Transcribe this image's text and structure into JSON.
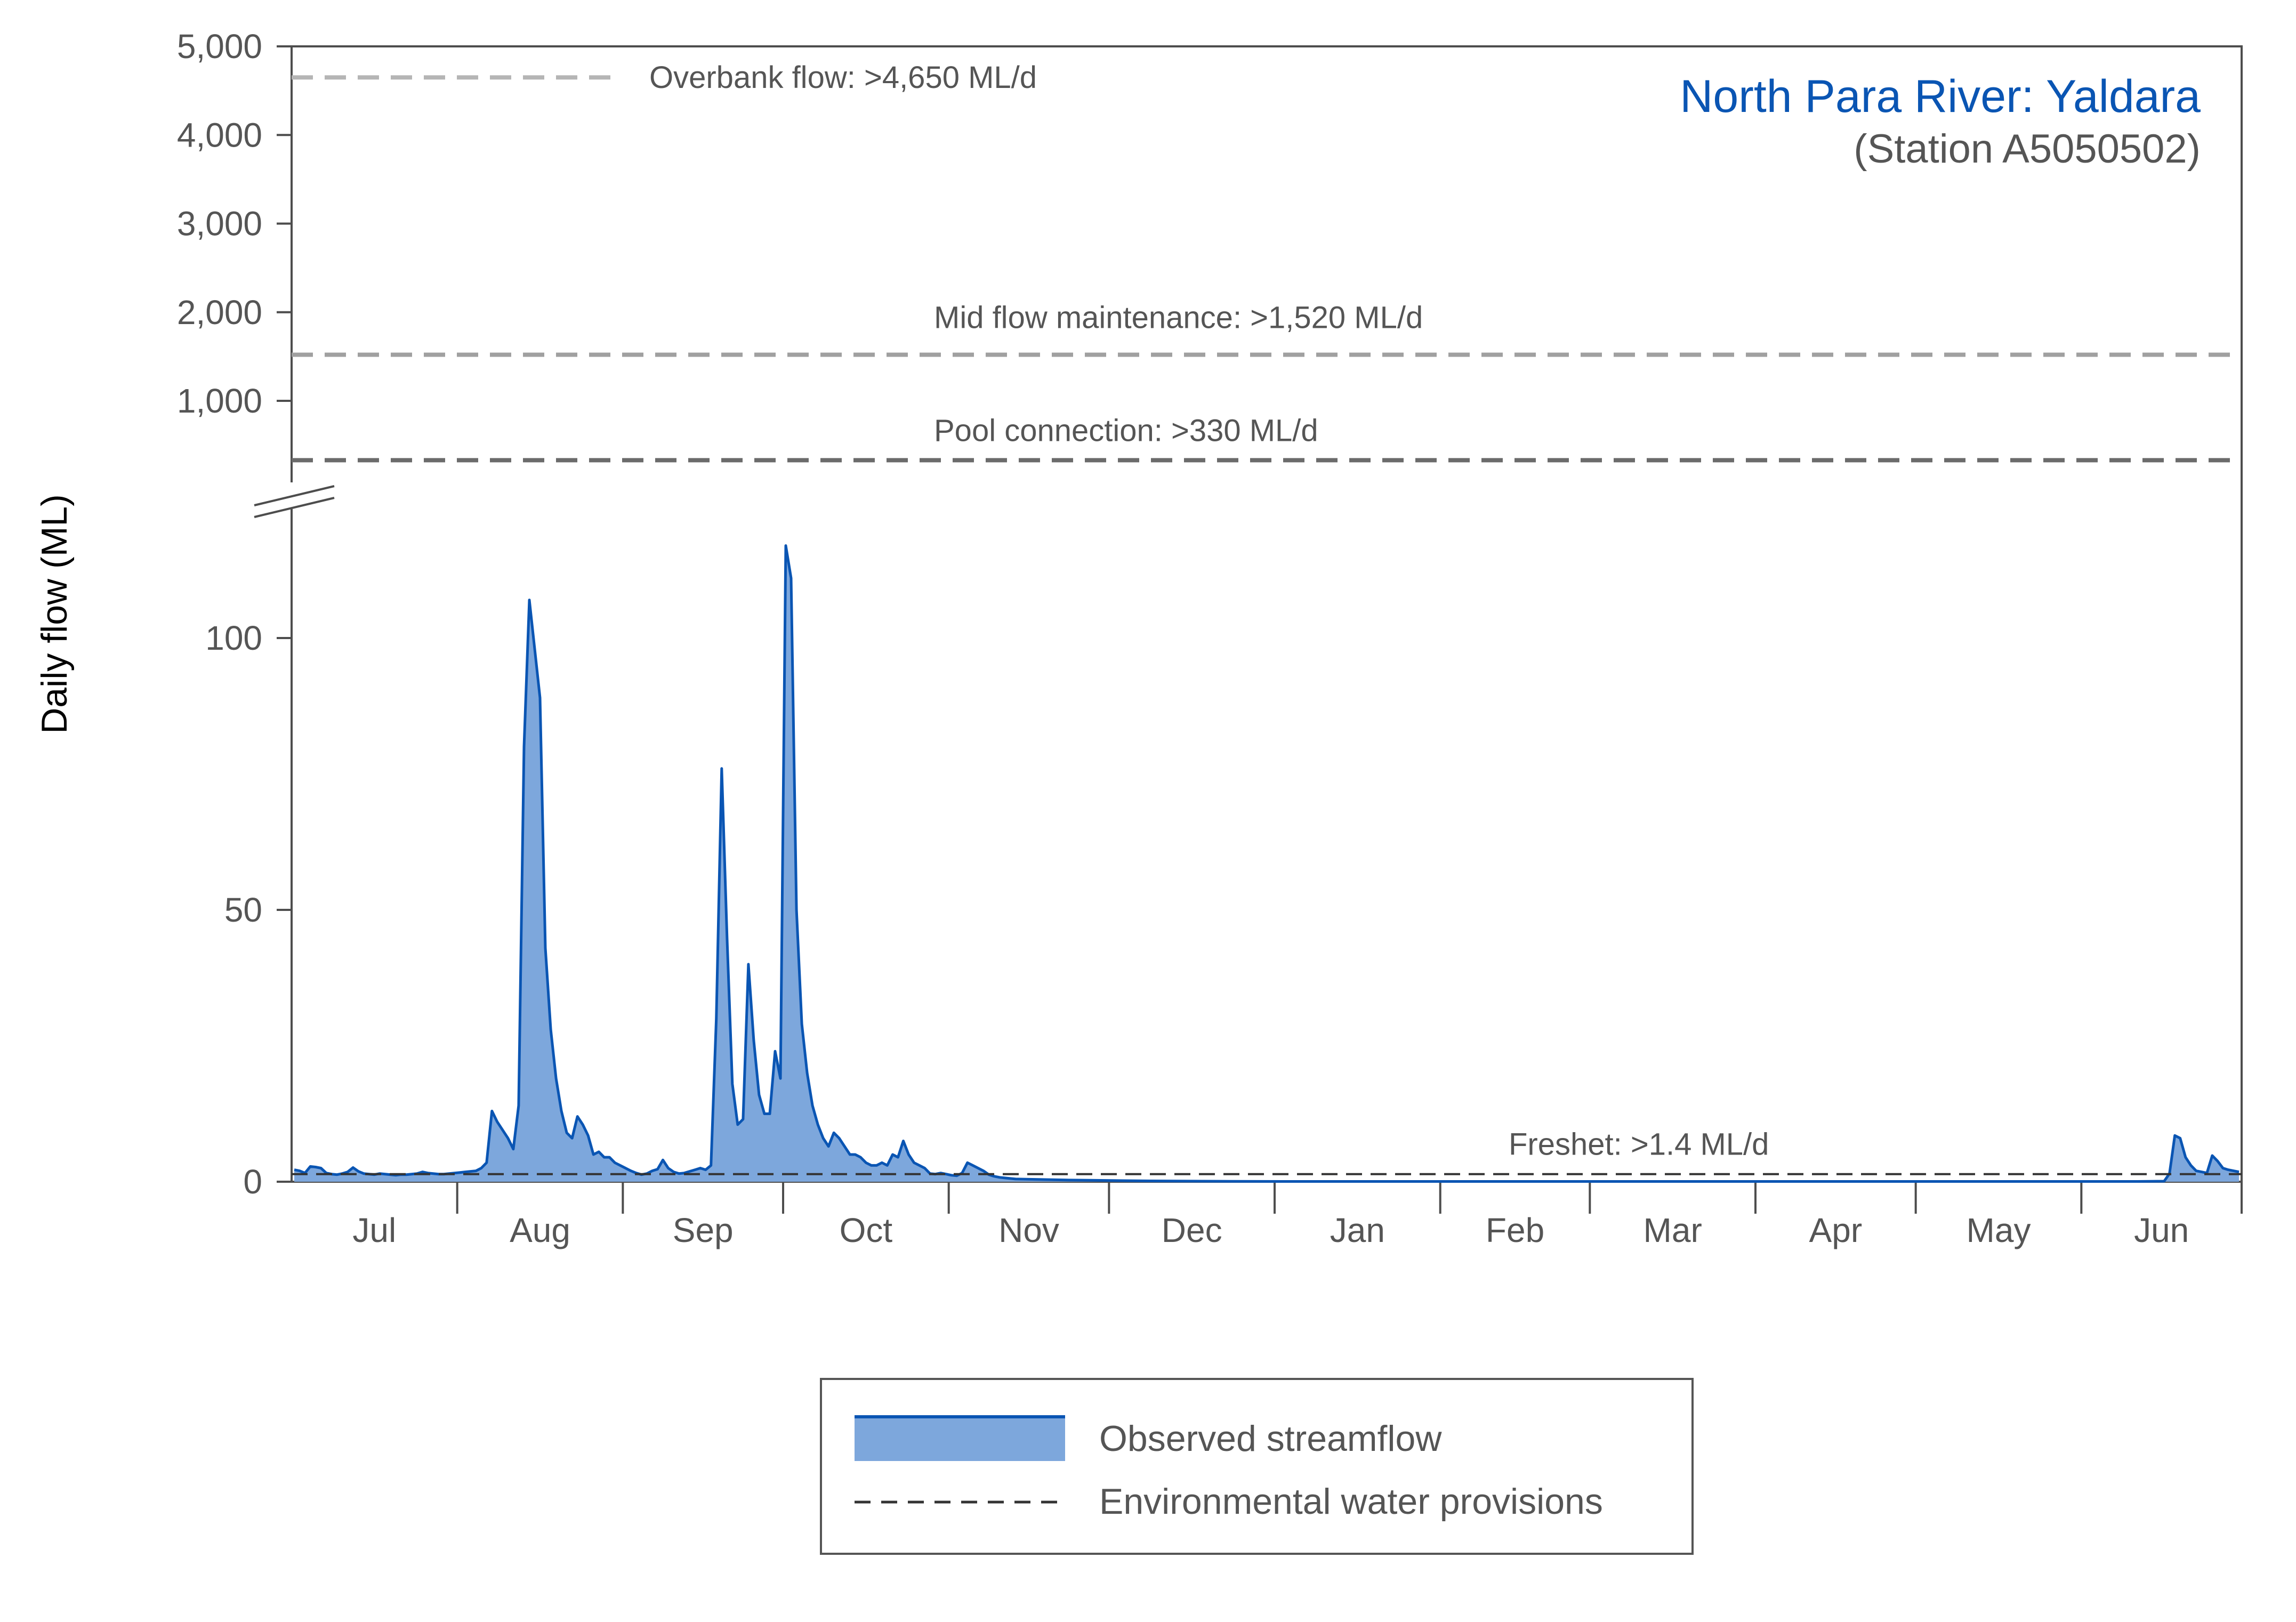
{
  "chart_data": {
    "type": "area",
    "title": "North Para River: Yaldara",
    "subtitle": "(Station A5050502)",
    "ylabel": "Daily flow (ML)",
    "xlabel": "",
    "ylim_lower": [
      0,
      125
    ],
    "ylim_upper": [
      0,
      5000
    ],
    "y_break": true,
    "lower_ticks": [
      {
        "value": 0,
        "label": "0"
      },
      {
        "value": 50,
        "label": "50"
      },
      {
        "value": 100,
        "label": "100"
      }
    ],
    "upper_ticks": [
      {
        "value": 1000,
        "label": "1,000"
      },
      {
        "value": 2000,
        "label": "2,000"
      },
      {
        "value": 3000,
        "label": "3,000"
      },
      {
        "value": 4000,
        "label": "4,000"
      },
      {
        "value": 5000,
        "label": "5,000"
      }
    ],
    "months": [
      {
        "label": "Jul",
        "start_day": 0,
        "days": 31
      },
      {
        "label": "Aug",
        "start_day": 31,
        "days": 31
      },
      {
        "label": "Sep",
        "start_day": 62,
        "days": 30
      },
      {
        "label": "Oct",
        "start_day": 92,
        "days": 31
      },
      {
        "label": "Nov",
        "start_day": 123,
        "days": 30
      },
      {
        "label": "Dec",
        "start_day": 153,
        "days": 31
      },
      {
        "label": "Jan",
        "start_day": 184,
        "days": 31
      },
      {
        "label": "Feb",
        "start_day": 215,
        "days": 28
      },
      {
        "label": "Mar",
        "start_day": 243,
        "days": 31
      },
      {
        "label": "Apr",
        "start_day": 274,
        "days": 30
      },
      {
        "label": "May",
        "start_day": 304,
        "days": 31
      },
      {
        "label": "Jun",
        "start_day": 335,
        "days": 30
      }
    ],
    "total_days": 365,
    "thresholds": [
      {
        "name": "overbank",
        "label": "Overbank flow: >4,650 ML/d",
        "value": 4650,
        "axis": "upper",
        "color": "#b5b5b5",
        "extent": "partial"
      },
      {
        "name": "mid-flow",
        "label": "Mid flow maintenance: >1,520 ML/d",
        "value": 1520,
        "axis": "upper",
        "color": "#a0a0a0",
        "extent": "full"
      },
      {
        "name": "pool-connection",
        "label": "Pool connection: >330 ML/d",
        "value": 330,
        "axis": "upper",
        "color": "#6b6b6b",
        "extent": "full"
      },
      {
        "name": "freshet",
        "label": "Freshet: >1.4 ML/d",
        "value": 1.4,
        "axis": "lower",
        "color": "#333333",
        "extent": "full"
      }
    ],
    "series": [
      {
        "name": "Observed streamflow",
        "line_color": "#0a55b3",
        "fill_color": "#7da7dc",
        "points": [
          [
            0,
            2.2
          ],
          [
            1,
            2.0
          ],
          [
            2,
            1.6
          ],
          [
            3,
            2.8
          ],
          [
            4,
            2.7
          ],
          [
            5,
            2.5
          ],
          [
            6,
            1.6
          ],
          [
            7,
            1.4
          ],
          [
            8,
            1.3
          ],
          [
            9,
            1.5
          ],
          [
            10,
            1.8
          ],
          [
            11,
            2.6
          ],
          [
            12,
            1.9
          ],
          [
            13,
            1.5
          ],
          [
            14,
            1.4
          ],
          [
            15,
            1.3
          ],
          [
            16,
            1.5
          ],
          [
            17,
            1.4
          ],
          [
            18,
            1.3
          ],
          [
            19,
            1.2
          ],
          [
            20,
            1.3
          ],
          [
            21,
            1.3
          ],
          [
            22,
            1.4
          ],
          [
            23,
            1.5
          ],
          [
            24,
            1.8
          ],
          [
            25,
            1.6
          ],
          [
            26,
            1.5
          ],
          [
            27,
            1.4
          ],
          [
            28,
            1.4
          ],
          [
            29,
            1.5
          ],
          [
            30,
            1.6
          ],
          [
            31,
            1.7
          ],
          [
            32,
            1.8
          ],
          [
            33,
            1.9
          ],
          [
            34,
            2.0
          ],
          [
            35,
            2.5
          ],
          [
            36,
            3.5
          ],
          [
            37,
            13.0
          ],
          [
            38,
            11.0
          ],
          [
            39,
            9.5
          ],
          [
            40,
            8.0
          ],
          [
            41,
            6.0
          ],
          [
            42,
            14.0
          ],
          [
            43,
            80.0
          ],
          [
            44,
            107.0
          ],
          [
            45,
            98.0
          ],
          [
            46,
            89.0
          ],
          [
            47,
            43.0
          ],
          [
            48,
            28.0
          ],
          [
            49,
            19.0
          ],
          [
            50,
            13.0
          ],
          [
            51,
            9.0
          ],
          [
            52,
            8.0
          ],
          [
            53,
            12.0
          ],
          [
            54,
            10.5
          ],
          [
            55,
            8.5
          ],
          [
            56,
            5.0
          ],
          [
            57,
            5.5
          ],
          [
            58,
            4.5
          ],
          [
            59,
            4.5
          ],
          [
            60,
            3.5
          ],
          [
            61,
            3.0
          ],
          [
            62,
            2.5
          ],
          [
            63,
            2.0
          ],
          [
            64,
            1.6
          ],
          [
            65,
            1.3
          ],
          [
            66,
            1.5
          ],
          [
            67,
            2.0
          ],
          [
            68,
            2.3
          ],
          [
            69,
            4.0
          ],
          [
            70,
            2.5
          ],
          [
            71,
            1.8
          ],
          [
            72,
            1.5
          ],
          [
            73,
            1.6
          ],
          [
            74,
            1.9
          ],
          [
            75,
            2.2
          ],
          [
            76,
            2.5
          ],
          [
            77,
            2.2
          ],
          [
            78,
            3.0
          ],
          [
            79,
            30.0
          ],
          [
            80,
            76.0
          ],
          [
            81,
            45.0
          ],
          [
            82,
            18.0
          ],
          [
            83,
            10.5
          ],
          [
            84,
            11.5
          ],
          [
            85,
            40.0
          ],
          [
            86,
            26.0
          ],
          [
            87,
            16.0
          ],
          [
            88,
            12.5
          ],
          [
            89,
            12.5
          ],
          [
            90,
            24.0
          ],
          [
            91,
            19.0
          ],
          [
            92,
            117.0
          ],
          [
            93,
            111.0
          ],
          [
            94,
            50.0
          ],
          [
            95,
            29.0
          ],
          [
            96,
            20.0
          ],
          [
            97,
            14.0
          ],
          [
            98,
            10.5
          ],
          [
            99,
            8.0
          ],
          [
            100,
            6.5
          ],
          [
            101,
            9.0
          ],
          [
            102,
            8.0
          ],
          [
            103,
            6.5
          ],
          [
            104,
            5.0
          ],
          [
            105,
            5.0
          ],
          [
            106,
            4.5
          ],
          [
            107,
            3.5
          ],
          [
            108,
            3.0
          ],
          [
            109,
            3.0
          ],
          [
            110,
            3.5
          ],
          [
            111,
            3.0
          ],
          [
            112,
            5.0
          ],
          [
            113,
            4.5
          ],
          [
            114,
            7.5
          ],
          [
            115,
            5.0
          ],
          [
            116,
            3.5
          ],
          [
            117,
            3.0
          ],
          [
            118,
            2.5
          ],
          [
            119,
            1.5
          ],
          [
            120,
            1.4
          ],
          [
            121,
            1.6
          ],
          [
            122,
            1.4
          ],
          [
            123,
            1.2
          ],
          [
            124,
            1.1
          ],
          [
            125,
            1.6
          ],
          [
            126,
            3.5
          ],
          [
            127,
            3.0
          ],
          [
            128,
            2.5
          ],
          [
            129,
            2.0
          ],
          [
            130,
            1.3
          ],
          [
            131,
            1.0
          ],
          [
            132,
            0.8
          ],
          [
            133,
            0.7
          ],
          [
            134,
            0.6
          ],
          [
            135,
            0.5
          ],
          [
            140,
            0.4
          ],
          [
            145,
            0.3
          ],
          [
            150,
            0.25
          ],
          [
            155,
            0.2
          ],
          [
            160,
            0.15
          ],
          [
            165,
            0.12
          ],
          [
            170,
            0.1
          ],
          [
            175,
            0.08
          ],
          [
            180,
            0.06
          ],
          [
            185,
            0.05
          ],
          [
            200,
            0.05
          ],
          [
            230,
            0.05
          ],
          [
            260,
            0.05
          ],
          [
            290,
            0.05
          ],
          [
            320,
            0.05
          ],
          [
            345,
            0.05
          ],
          [
            350,
            0.1
          ],
          [
            351,
            1.5
          ],
          [
            352,
            8.5
          ],
          [
            353,
            8.0
          ],
          [
            354,
            4.5
          ],
          [
            355,
            3.0
          ],
          [
            356,
            2.0
          ],
          [
            357,
            1.8
          ],
          [
            358,
            1.6
          ],
          [
            359,
            4.8
          ],
          [
            360,
            3.8
          ],
          [
            361,
            2.5
          ],
          [
            362,
            2.2
          ],
          [
            363,
            2.0
          ],
          [
            364,
            1.8
          ]
        ]
      }
    ],
    "legend": {
      "position": "bottom-center",
      "entries": [
        {
          "label": "Observed streamflow",
          "type": "area"
        },
        {
          "label": "Environmental water provisions",
          "type": "dashed-line"
        }
      ]
    }
  }
}
